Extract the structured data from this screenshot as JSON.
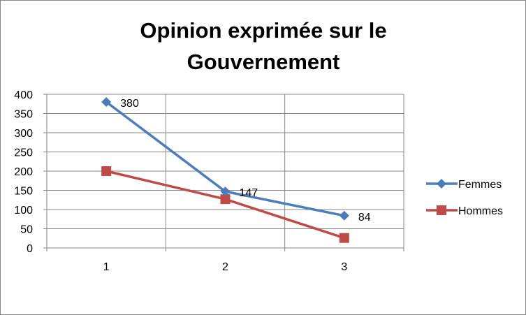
{
  "chart_data": {
    "type": "line",
    "title_lines": [
      "Opinion exprimée sur le",
      "Gouvernement"
    ],
    "x": [
      1,
      2,
      3
    ],
    "x_tick_labels": [
      "1",
      "2",
      "3"
    ],
    "ylim": [
      0,
      400
    ],
    "y_ticks": [
      0,
      50,
      100,
      150,
      200,
      250,
      300,
      350,
      400
    ],
    "y_tick_labels": [
      "0",
      "50",
      "100",
      "150",
      "200",
      "250",
      "300",
      "350",
      "400"
    ],
    "grid": "vertical and horizontal",
    "legend_position": "right",
    "series": [
      {
        "name": "Femmes",
        "values": [
          380,
          147,
          84
        ],
        "color": "#4a7ebb",
        "marker": "diamond",
        "data_labels": [
          "380",
          "147",
          "84"
        ]
      },
      {
        "name": "Hommes",
        "values": [
          200,
          127,
          26
        ],
        "color": "#be4b48",
        "marker": "square",
        "data_labels": []
      }
    ]
  }
}
